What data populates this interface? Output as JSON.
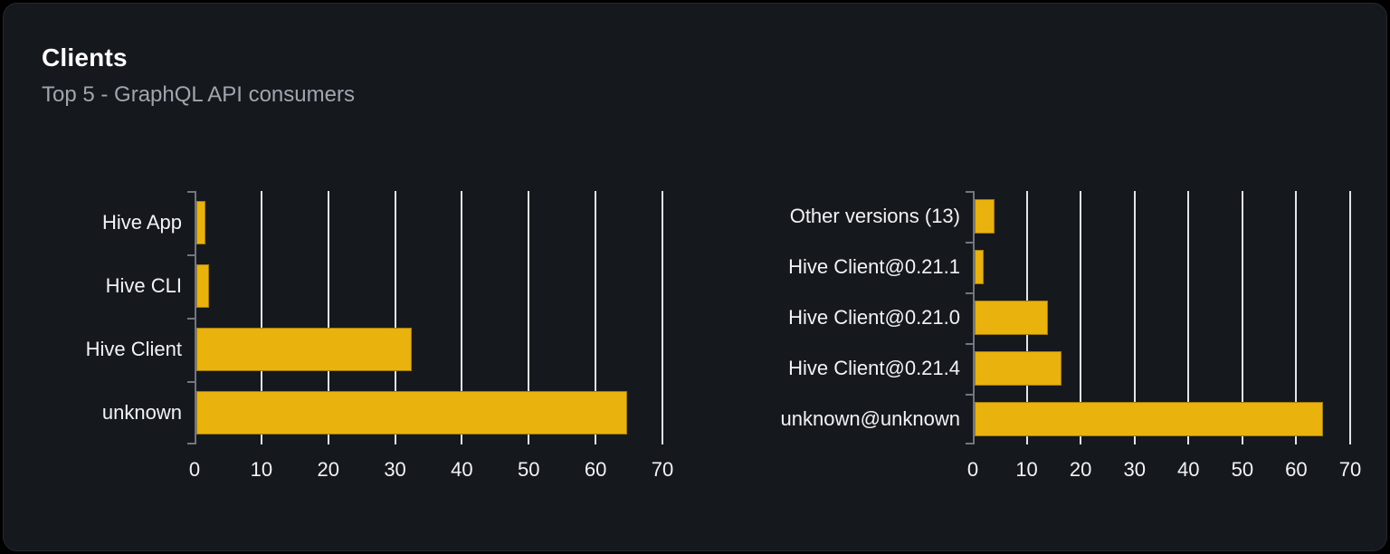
{
  "header": {
    "title": "Clients",
    "subtitle": "Top 5 - GraphQL API consumers"
  },
  "colors": {
    "bar": "#e9b20d",
    "grid": "#e2e5e9",
    "axis": "#71767f",
    "label": "#f2f3f5",
    "subtitle": "#a0a6ad",
    "card_bg": "#15181d",
    "page_bg": "#000000",
    "card_border": "#23272e"
  },
  "chart_data": [
    {
      "type": "bar",
      "name": "clients-by-name",
      "orientation": "horizontal",
      "categories": [
        "Hive App",
        "Hive CLI",
        "Hive Client",
        "unknown"
      ],
      "values": [
        1.3,
        1.9,
        32.2,
        64.4
      ],
      "xlim": [
        0,
        70
      ],
      "xticks": [
        0,
        10,
        20,
        30,
        40,
        50,
        60,
        70
      ],
      "grid": true,
      "legend": "none",
      "title": "",
      "xlabel": "",
      "ylabel": ""
    },
    {
      "type": "bar",
      "name": "clients-by-version",
      "orientation": "horizontal",
      "categories": [
        "Other versions (13)",
        "Hive Client@0.21.1",
        "Hive Client@0.21.0",
        "Hive Client@0.21.4",
        "unknown@unknown"
      ],
      "values": [
        3.7,
        1.6,
        13.6,
        16.1,
        64.6
      ],
      "xlim": [
        0,
        70
      ],
      "xticks": [
        0,
        10,
        20,
        30,
        40,
        50,
        60,
        70
      ],
      "grid": true,
      "legend": "none",
      "title": "",
      "xlabel": "",
      "ylabel": ""
    }
  ]
}
